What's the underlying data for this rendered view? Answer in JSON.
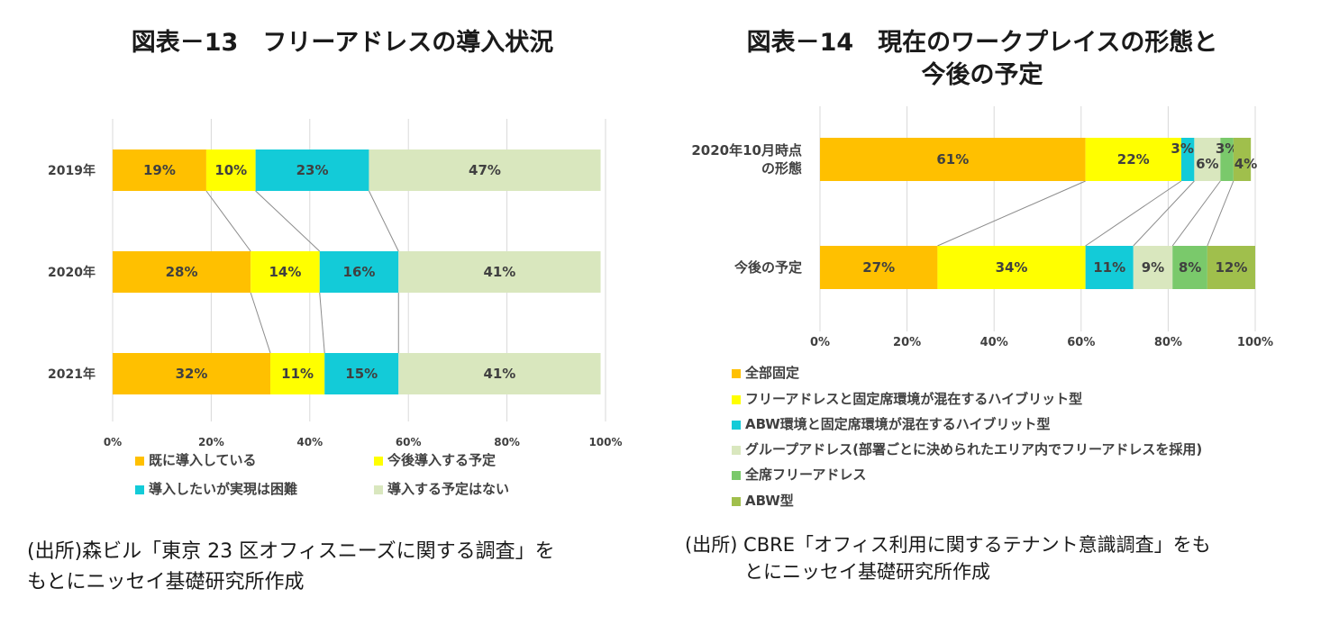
{
  "left": {
    "title": "図表－13　フリーアドレスの導入状況",
    "source_line1": "(出所)森ビル「東京 23 区オフィスニーズに関する調査」を",
    "source_line2": "もとにニッセイ基礎研究所作成"
  },
  "right": {
    "title_line1": "図表－14　現在のワークプレイスの形態と",
    "title_line2": "今後の予定",
    "source_line1": "(出所) CBRE「オフィス利用に関するテナント意識調査」をも",
    "source_line2": "とにニッセイ基礎研究所作成"
  },
  "chart_data": [
    {
      "type": "bar",
      "orientation": "horizontal",
      "stacked": "percent",
      "title": "図表－13　フリーアドレスの導入状況",
      "categories": [
        "2019年",
        "2020年",
        "2021年"
      ],
      "series": [
        {
          "name": "既に導入している",
          "color": "#FFC000",
          "values": [
            19,
            28,
            32
          ]
        },
        {
          "name": "今後導入する予定",
          "color": "#FFFF00",
          "values": [
            10,
            14,
            11
          ]
        },
        {
          "name": "導入したいが実現は困難",
          "color": "#13CBD8",
          "values": [
            23,
            16,
            15
          ]
        },
        {
          "name": "導入する予定はない",
          "color": "#D9E7BE",
          "values": [
            47,
            41,
            41
          ]
        }
      ],
      "x_ticks": [
        "0%",
        "20%",
        "40%",
        "60%",
        "80%",
        "100%"
      ],
      "xlim": [
        0,
        100
      ],
      "grid": true,
      "series_lines": true,
      "legend": "bottom"
    },
    {
      "type": "bar",
      "orientation": "horizontal",
      "stacked": "percent",
      "title": "図表－14　現在のワークプレイスの形態と今後の予定",
      "categories": [
        "2020年10月時点の形態",
        "今後の予定"
      ],
      "category_lines": [
        [
          "2020年10月時点",
          "の形態"
        ],
        [
          "今後の予定"
        ]
      ],
      "series": [
        {
          "name": "全部固定",
          "color": "#FFC000",
          "values": [
            61,
            27
          ]
        },
        {
          "name": "フリーアドレスと固定席環境が混在するハイブリット型",
          "color": "#FFFF00",
          "values": [
            22,
            34
          ]
        },
        {
          "name": "ABW環境と固定席環境が混在するハイブリット型",
          "color": "#13CBD8",
          "values": [
            3,
            11
          ]
        },
        {
          "name": "グループアドレス(部署ごとに決められたエリア内でフリーアドレスを採用)",
          "color": "#D9E7BE",
          "values": [
            6,
            9
          ]
        },
        {
          "name": "全席フリーアドレス",
          "color": "#7AC96B",
          "values": [
            3,
            8
          ]
        },
        {
          "name": "ABW型",
          "color": "#A0BF4C",
          "values": [
            4,
            12
          ]
        }
      ],
      "x_ticks": [
        "0%",
        "20%",
        "40%",
        "60%",
        "80%",
        "100%"
      ],
      "xlim": [
        0,
        100
      ],
      "grid": true,
      "series_lines": true,
      "legend": "bottom"
    }
  ]
}
